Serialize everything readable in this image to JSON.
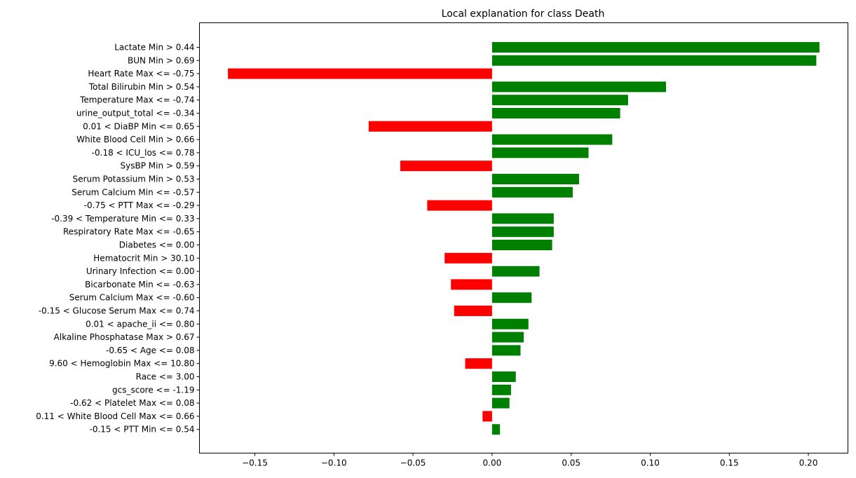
{
  "chart_data": {
    "type": "bar",
    "orientation": "horizontal",
    "title": "Local explanation for class Death",
    "xlabel": "",
    "ylabel": "",
    "xlim": [
      -0.185,
      0.225
    ],
    "x_ticks": [
      -0.15,
      -0.1,
      -0.05,
      0.0,
      0.05,
      0.1,
      0.15,
      0.2
    ],
    "x_tick_labels": [
      "−0.15",
      "−0.10",
      "−0.05",
      "0.00",
      "0.05",
      "0.10",
      "0.15",
      "0.20"
    ],
    "grid": false,
    "colors": {
      "positive": "#008000",
      "negative": "#ff0000"
    },
    "categories": [
      "Lactate Min > 0.44",
      "BUN Min > 0.69",
      "Heart Rate Max <= -0.75",
      "Total Bilirubin Min > 0.54",
      "Temperature Max <= -0.74",
      "urine_output_total <= -0.34",
      "0.01 < DiaBP Min <= 0.65",
      "White Blood Cell Min > 0.66",
      "-0.18 < ICU_los <= 0.78",
      "SysBP Min > 0.59",
      "Serum Potassium Min > 0.53",
      "Serum Calcium Min <= -0.57",
      "-0.75 < PTT Max <= -0.29",
      "-0.39 < Temperature Min <= 0.33",
      "Respiratory Rate Max <= -0.65",
      "Diabetes <= 0.00",
      "Hematocrit Min > 30.10",
      "Urinary Infection <= 0.00",
      "Bicarbonate Min <= -0.63",
      "Serum Calcium Max <= -0.60",
      "-0.15 < Glucose Serum Max <= 0.74",
      "0.01 < apache_ii <= 0.80",
      "Alkaline Phosphatase Max > 0.67",
      "-0.65 < Age <= 0.08",
      "9.60 < Hemoglobin Max <= 10.80",
      "Race <= 3.00",
      "gcs_score <= -1.19",
      "-0.62 < Platelet Max <= 0.08",
      "0.11 < White Blood Cell Max <= 0.66",
      "-0.15 < PTT Min <= 0.54"
    ],
    "values": [
      0.207,
      0.205,
      -0.167,
      0.11,
      0.086,
      0.081,
      -0.078,
      0.076,
      0.061,
      -0.058,
      0.055,
      0.051,
      -0.041,
      0.039,
      0.039,
      0.038,
      -0.03,
      0.03,
      -0.026,
      0.025,
      -0.024,
      0.023,
      0.02,
      0.018,
      -0.017,
      0.015,
      0.012,
      0.011,
      -0.006,
      0.005
    ]
  }
}
